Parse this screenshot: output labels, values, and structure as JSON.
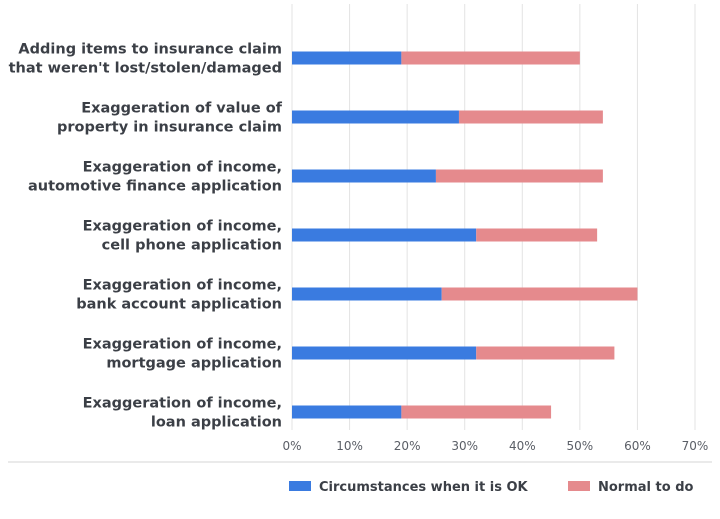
{
  "chart_data": {
    "type": "bar",
    "orientation": "horizontal",
    "stacked": true,
    "categories": [
      [
        "Adding items to insurance claim",
        "that weren't lost/stolen/damaged"
      ],
      [
        "Exaggeration of value of",
        "property in insurance claim"
      ],
      [
        "Exaggeration of income,",
        "automotive finance application"
      ],
      [
        "Exaggeration of income,",
        "cell phone application"
      ],
      [
        "Exaggeration of income,",
        "bank account application"
      ],
      [
        "Exaggeration of income,",
        "mortgage application"
      ],
      [
        "Exaggeration of income,",
        "loan application"
      ]
    ],
    "series": [
      {
        "name": "Circumstances when it is OK",
        "color": "#3a7be0",
        "values": [
          19,
          29,
          25,
          32,
          26,
          32,
          19
        ]
      },
      {
        "name": "Normal to do",
        "color": "#e58a8d",
        "values": [
          31,
          25,
          29,
          21,
          34,
          24,
          26
        ]
      }
    ],
    "xlim": [
      0,
      70
    ],
    "xticks": [
      0,
      10,
      20,
      30,
      40,
      50,
      60,
      70
    ],
    "tick_suffix": "%",
    "grid": true,
    "legend_position": "bottom"
  }
}
